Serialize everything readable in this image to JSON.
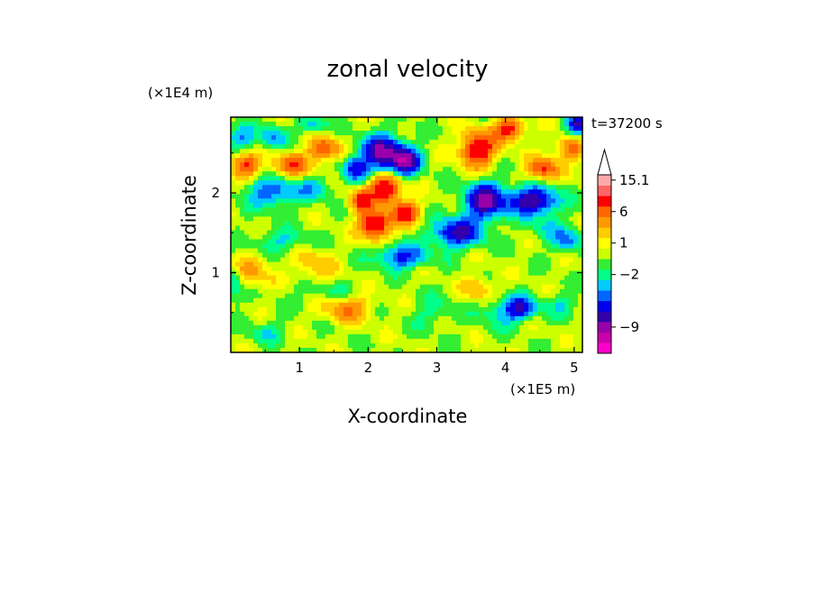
{
  "chart_data": {
    "type": "heatmap",
    "title": "zonal velocity",
    "xlabel": "X-coordinate",
    "ylabel": "Z-coordinate",
    "x_unit_label": "(×1E5 m)",
    "y_unit_label": "(×1E4 m)",
    "time_label": "t=37200 s",
    "xlim": [
      0,
      5.12
    ],
    "ylim": [
      0,
      2.95
    ],
    "x_ticks": [
      1,
      2,
      3,
      4,
      5
    ],
    "y_ticks": [
      1,
      2
    ],
    "grid": false,
    "legend": "colorbar-right",
    "colorbar": {
      "levels": [
        {
          "color": "#ff00cc"
        },
        {
          "color": "#cc00aa"
        },
        {
          "color": "#9900aa"
        },
        {
          "color": "#3300aa"
        },
        {
          "color": "#0000ee"
        },
        {
          "color": "#0066ff"
        },
        {
          "color": "#00ccff"
        },
        {
          "color": "#00ff88"
        },
        {
          "color": "#33ee33"
        },
        {
          "color": "#ccff00"
        },
        {
          "color": "#ffff00"
        },
        {
          "color": "#ffcc00"
        },
        {
          "color": "#ff9900"
        },
        {
          "color": "#ff6600"
        },
        {
          "color": "#ff0000"
        },
        {
          "color": "#ff6666"
        },
        {
          "color": "#ffaaaa"
        }
      ],
      "labels": [
        {
          "text": "15.1",
          "level": 16
        },
        {
          "text": "6",
          "level": 13
        },
        {
          "text": "1",
          "level": 10
        },
        {
          "text": "−2",
          "level": 7
        },
        {
          "text": "−9",
          "level": 2
        }
      ]
    },
    "field": {
      "base_value": 0.3,
      "features": [
        {
          "x": 2.2,
          "z": 2.5,
          "value": -10,
          "sx": 0.2,
          "sz": 0.15
        },
        {
          "x": 2.55,
          "z": 2.4,
          "value": -9,
          "sx": 0.15,
          "sz": 0.12
        },
        {
          "x": 1.8,
          "z": 2.3,
          "value": -6,
          "sx": 0.12,
          "sz": 0.1
        },
        {
          "x": 3.3,
          "z": 1.5,
          "value": -8,
          "sx": 0.25,
          "sz": 0.12
        },
        {
          "x": 3.7,
          "z": 1.9,
          "value": -10,
          "sx": 0.2,
          "sz": 0.15
        },
        {
          "x": 4.4,
          "z": 1.9,
          "value": -9,
          "sx": 0.25,
          "sz": 0.12
        },
        {
          "x": 2.5,
          "z": 1.2,
          "value": -6,
          "sx": 0.25,
          "sz": 0.1
        },
        {
          "x": 4.2,
          "z": 0.55,
          "value": -7,
          "sx": 0.15,
          "sz": 0.1
        },
        {
          "x": 0.15,
          "z": 2.7,
          "value": -4,
          "sx": 0.15,
          "sz": 0.1
        },
        {
          "x": 0.6,
          "z": 2.7,
          "value": -4,
          "sx": 0.12,
          "sz": 0.1
        },
        {
          "x": 0.6,
          "z": 2.0,
          "value": -5,
          "sx": 0.25,
          "sz": 0.12
        },
        {
          "x": 1.2,
          "z": 2.05,
          "value": -3,
          "sx": 0.2,
          "sz": 0.1
        },
        {
          "x": 0.05,
          "z": 0.85,
          "value": -3,
          "sx": 0.1,
          "sz": 0.15
        },
        {
          "x": 5.05,
          "z": 2.85,
          "value": -8,
          "sx": 0.1,
          "sz": 0.1
        },
        {
          "x": 4.9,
          "z": 1.4,
          "value": -4,
          "sx": 0.15,
          "sz": 0.1
        },
        {
          "x": 2.25,
          "z": 2.05,
          "value": 9,
          "sx": 0.15,
          "sz": 0.12
        },
        {
          "x": 2.1,
          "z": 1.6,
          "value": 9,
          "sx": 0.15,
          "sz": 0.12
        },
        {
          "x": 2.55,
          "z": 1.75,
          "value": 7,
          "sx": 0.15,
          "sz": 0.1
        },
        {
          "x": 1.9,
          "z": 1.9,
          "value": 6,
          "sx": 0.12,
          "sz": 0.1
        },
        {
          "x": 3.6,
          "z": 2.55,
          "value": 8,
          "sx": 0.18,
          "sz": 0.15
        },
        {
          "x": 4.05,
          "z": 2.8,
          "value": 7,
          "sx": 0.15,
          "sz": 0.1
        },
        {
          "x": 4.55,
          "z": 2.3,
          "value": 6,
          "sx": 0.15,
          "sz": 0.1
        },
        {
          "x": 0.2,
          "z": 2.35,
          "value": 6,
          "sx": 0.15,
          "sz": 0.1
        },
        {
          "x": 0.9,
          "z": 2.35,
          "value": 5,
          "sx": 0.2,
          "sz": 0.1
        },
        {
          "x": 1.35,
          "z": 2.55,
          "value": 6,
          "sx": 0.15,
          "sz": 0.1
        },
        {
          "x": 4.95,
          "z": 2.55,
          "value": 5,
          "sx": 0.15,
          "sz": 0.1
        },
        {
          "x": 1.7,
          "z": 0.55,
          "value": 4,
          "sx": 0.25,
          "sz": 0.12
        },
        {
          "x": 0.3,
          "z": 1.0,
          "value": 3,
          "sx": 0.2,
          "sz": 0.15
        },
        {
          "x": 3.6,
          "z": 0.8,
          "value": 3,
          "sx": 0.15,
          "sz": 0.1
        },
        {
          "x": 1.2,
          "z": 1.1,
          "value": 2.5,
          "sx": 0.2,
          "sz": 0.15
        },
        {
          "x": 0.75,
          "z": 1.4,
          "value": -2.5,
          "sx": 0.3,
          "sz": 0.1
        },
        {
          "x": 1.4,
          "z": 0.75,
          "value": -1.5,
          "sx": 0.35,
          "sz": 0.1
        },
        {
          "x": 2.95,
          "z": 0.5,
          "value": -1.8,
          "sx": 0.2,
          "sz": 0.15
        },
        {
          "x": 0.5,
          "z": 0.25,
          "value": -2,
          "sx": 0.2,
          "sz": 0.1
        },
        {
          "x": 4.8,
          "z": 0.6,
          "value": -2,
          "sx": 0.2,
          "sz": 0.1
        },
        {
          "x": 3.9,
          "z": 0.5,
          "value": -2.5,
          "sx": 0.2,
          "sz": 0.12
        },
        {
          "x": 1.2,
          "z": 2.85,
          "value": -3,
          "sx": 0.15,
          "sz": 0.08
        },
        {
          "x": 4.6,
          "z": 1.55,
          "value": -2,
          "sx": 0.2,
          "sz": 0.1
        }
      ]
    }
  }
}
